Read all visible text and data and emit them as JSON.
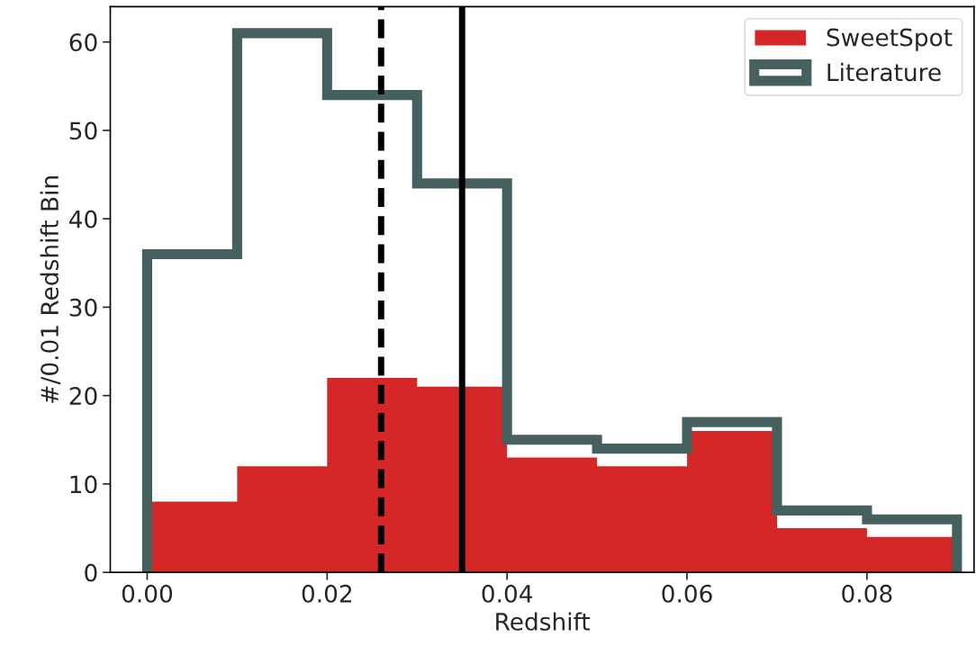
{
  "chart_data": {
    "type": "histogram",
    "xlabel": "Redshift",
    "ylabel": "#/0.01 Redshift Bin",
    "bins": [
      0.0,
      0.01,
      0.02,
      0.03,
      0.04,
      0.05,
      0.06,
      0.07,
      0.08,
      0.09
    ],
    "series": [
      {
        "name": "SweetSpot",
        "color": "#d62728",
        "values": [
          8,
          12,
          22,
          21,
          13,
          12,
          16,
          5,
          4
        ]
      },
      {
        "name": "Literature",
        "type": "step",
        "color": "#465f5f",
        "x": [
          0.0,
          0.0,
          0.01,
          0.02,
          0.03,
          0.04,
          0.05,
          0.06,
          0.07,
          0.08,
          0.09,
          0.09
        ],
        "values": [
          0,
          36,
          61,
          54,
          44,
          15,
          14,
          17,
          7,
          6,
          6,
          0
        ]
      }
    ],
    "ref_lines": [
      {
        "axis": "x",
        "value": 0.026,
        "color": "#000000",
        "line_style": "dashed"
      },
      {
        "axis": "x",
        "value": 0.035,
        "color": "#000000",
        "line_style": "solid"
      }
    ],
    "xlim": [
      -0.0041,
      0.0919
    ],
    "ylim": [
      0,
      64
    ],
    "xticks": [
      {
        "value": 0.0,
        "label": "0.00"
      },
      {
        "value": 0.02,
        "label": "0.02"
      },
      {
        "value": 0.04,
        "label": "0.04"
      },
      {
        "value": 0.06,
        "label": "0.06"
      },
      {
        "value": 0.08,
        "label": "0.08"
      }
    ],
    "yticks": [
      0,
      10,
      20,
      30,
      40,
      50,
      60
    ],
    "grid": false,
    "legend": "top right"
  }
}
